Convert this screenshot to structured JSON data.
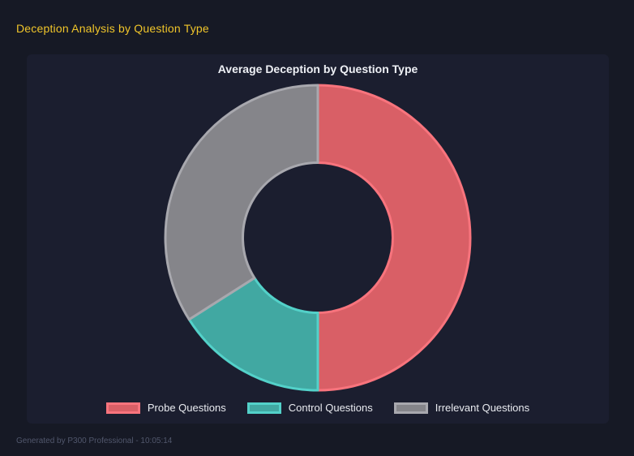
{
  "page": {
    "title": "Deception Analysis by Question Type",
    "footer": "Generated by P300 Professional - 10:05:14"
  },
  "colors": {
    "page_bg": "#161925",
    "panel_bg": "#1b1e2f",
    "page_title": "#f0c52a",
    "chart_title": "#eef0f5",
    "legend_text": "#e9ebf0",
    "footer_text": "#51576c"
  },
  "chart_data": {
    "type": "pie",
    "variant": "doughnut",
    "title": "Average Deception by Question Type",
    "categories": [
      "Probe Questions",
      "Control Questions",
      "Irrelevant Questions"
    ],
    "values_percent": [
      50,
      16,
      34
    ],
    "segment_colors": [
      "#d95f66",
      "#41a8a2",
      "#85858a"
    ],
    "segment_border_colors": [
      "#f8747d",
      "#53d1c9",
      "#a8a8ae"
    ],
    "border_width": 3,
    "start_angle_deg": 0,
    "cutout_percent": 49,
    "legend_position": "bottom",
    "grid": false
  }
}
